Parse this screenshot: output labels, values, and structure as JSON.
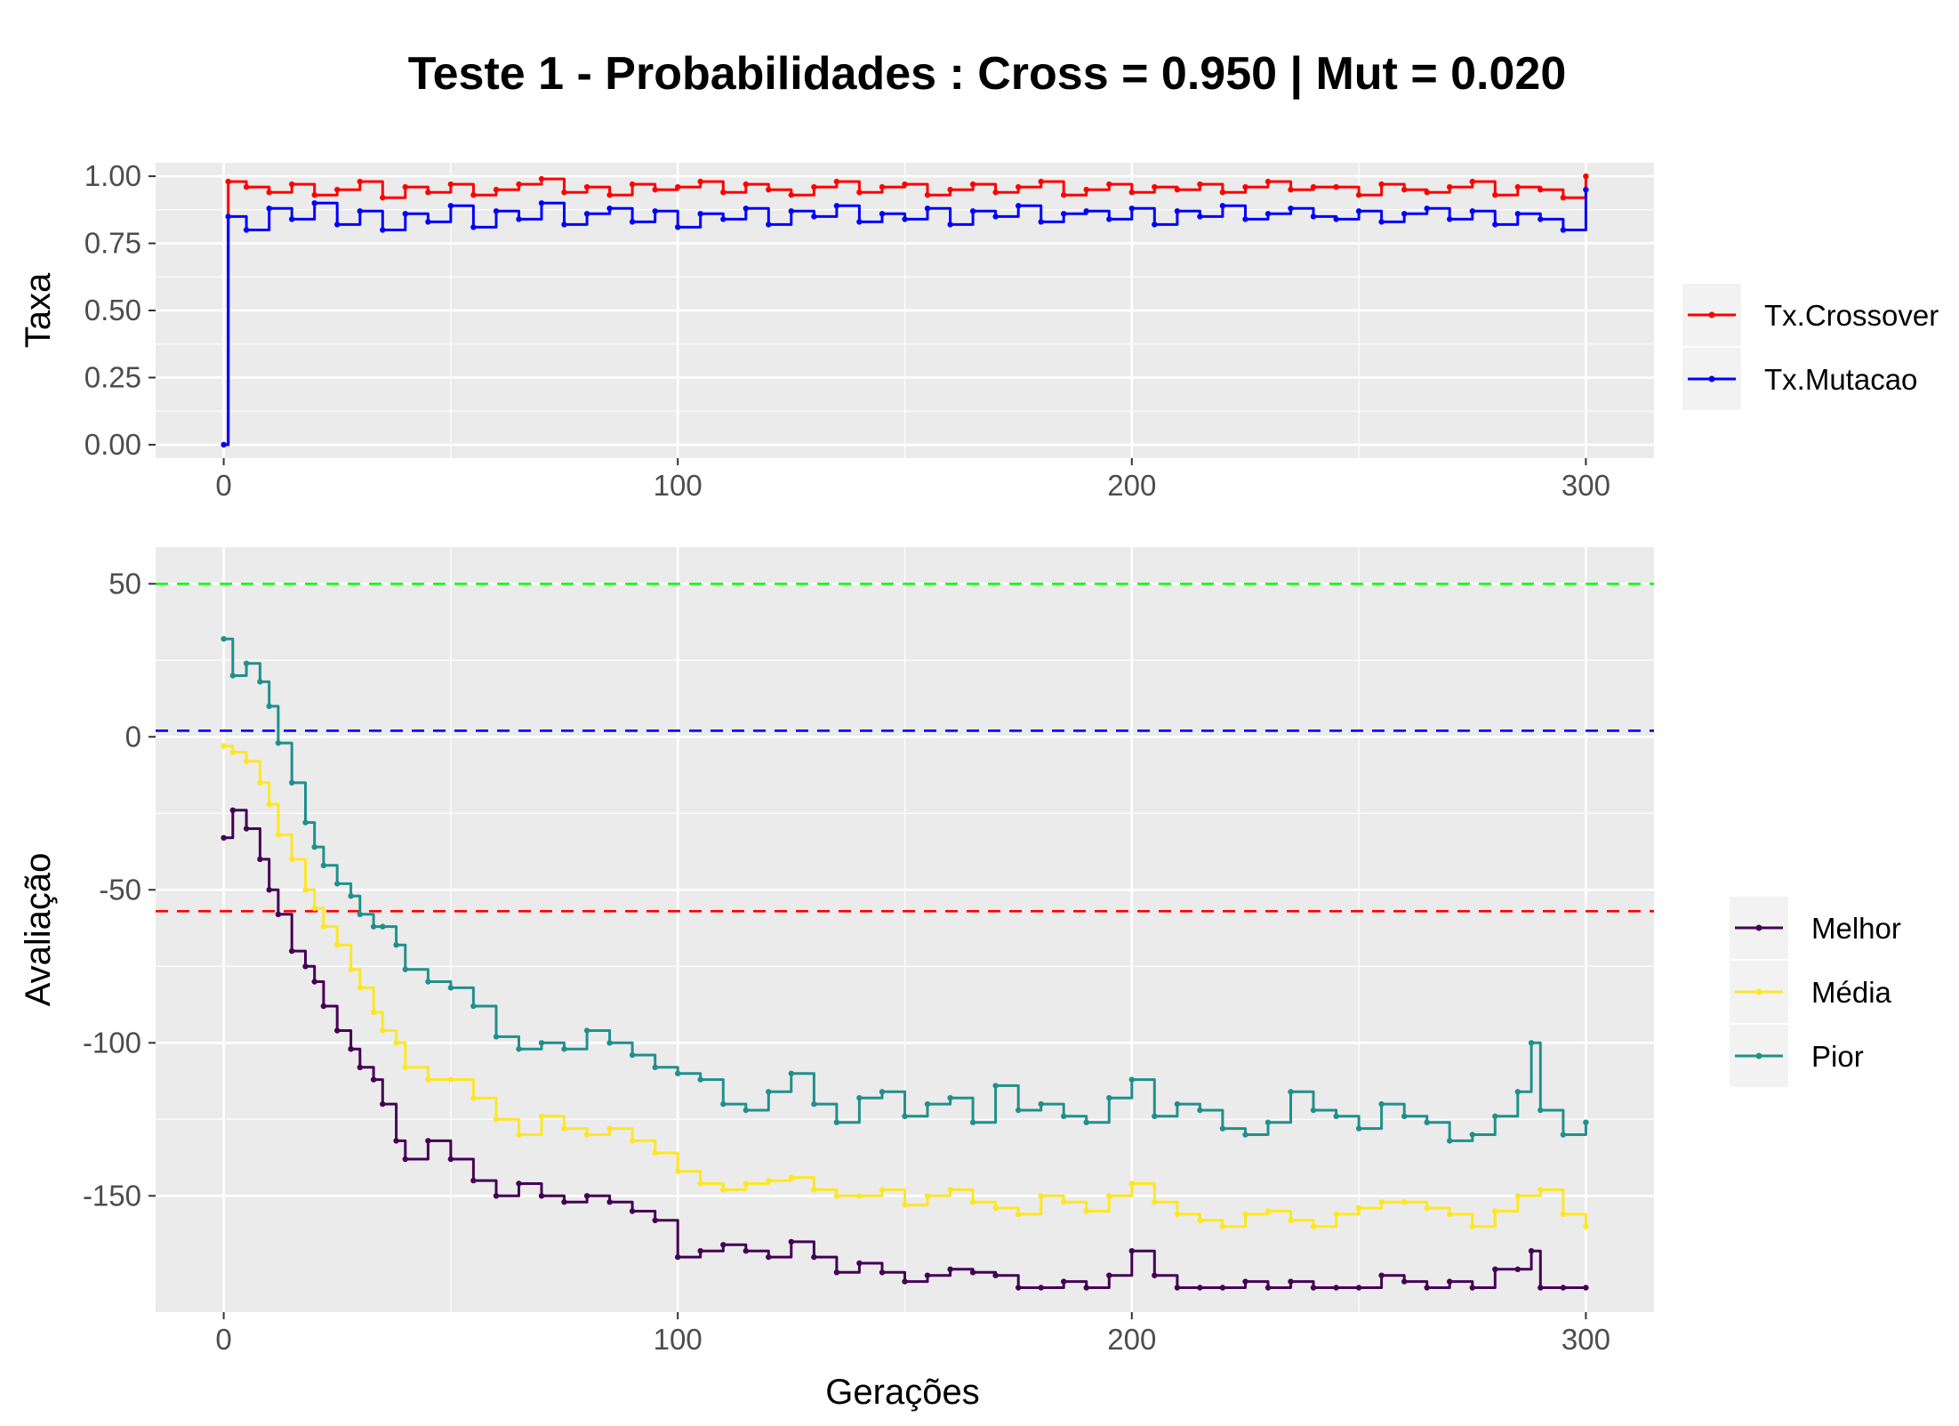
{
  "title": "Teste 1 - Probabilidades : Cross = 0.950 | Mut = 0.020",
  "colors": {
    "panel": "#ebebeb",
    "grid": "#ffffff",
    "crossover": "#ff0000",
    "mutacao": "#0000ff",
    "melhor": "#440154",
    "media": "#fde725",
    "pior": "#21908c",
    "ref_green": "#00ff00",
    "ref_blue": "#0000ff",
    "ref_red": "#ff0000"
  },
  "chart_data": [
    {
      "type": "line",
      "ylabel": "Taxa",
      "xlabel": "",
      "xlim": [
        -15,
        315
      ],
      "ylim": [
        -0.05,
        1.05
      ],
      "x_ticks": [
        0,
        100,
        200,
        300
      ],
      "x_tick_labels": [
        "0",
        "100",
        "200",
        "300"
      ],
      "y_ticks": [
        0,
        0.25,
        0.5,
        0.75,
        1.0
      ],
      "y_tick_labels": [
        "0.00",
        "0.25",
        "0.50",
        "0.75",
        "1.00"
      ],
      "grid": true,
      "legend_position": "right",
      "series": [
        {
          "name": "Tx.Crossover",
          "color": "#ff0000",
          "x": [
            0,
            1,
            5,
            10,
            15,
            20,
            25,
            30,
            35,
            40,
            45,
            50,
            55,
            60,
            65,
            70,
            75,
            80,
            85,
            90,
            95,
            100,
            105,
            110,
            115,
            120,
            125,
            130,
            135,
            140,
            145,
            150,
            155,
            160,
            165,
            170,
            175,
            180,
            185,
            190,
            195,
            200,
            205,
            210,
            215,
            220,
            225,
            230,
            235,
            240,
            245,
            250,
            255,
            260,
            265,
            270,
            275,
            280,
            285,
            290,
            295,
            300
          ],
          "values": [
            0.0,
            0.98,
            0.96,
            0.94,
            0.97,
            0.93,
            0.95,
            0.98,
            0.92,
            0.96,
            0.94,
            0.97,
            0.93,
            0.95,
            0.97,
            0.99,
            0.94,
            0.96,
            0.93,
            0.97,
            0.95,
            0.96,
            0.98,
            0.94,
            0.97,
            0.95,
            0.93,
            0.96,
            0.98,
            0.94,
            0.96,
            0.97,
            0.93,
            0.95,
            0.97,
            0.94,
            0.96,
            0.98,
            0.93,
            0.95,
            0.97,
            0.94,
            0.96,
            0.95,
            0.97,
            0.94,
            0.96,
            0.98,
            0.95,
            0.96,
            0.96,
            0.93,
            0.97,
            0.95,
            0.94,
            0.96,
            0.98,
            0.93,
            0.96,
            0.95,
            0.92,
            1.0
          ]
        },
        {
          "name": "Tx.Mutacao",
          "color": "#0000ff",
          "x": [
            0,
            1,
            5,
            10,
            15,
            20,
            25,
            30,
            35,
            40,
            45,
            50,
            55,
            60,
            65,
            70,
            75,
            80,
            85,
            90,
            95,
            100,
            105,
            110,
            115,
            120,
            125,
            130,
            135,
            140,
            145,
            150,
            155,
            160,
            165,
            170,
            175,
            180,
            185,
            190,
            195,
            200,
            205,
            210,
            215,
            220,
            225,
            230,
            235,
            240,
            245,
            250,
            255,
            260,
            265,
            270,
            275,
            280,
            285,
            290,
            295,
            300
          ],
          "values": [
            0.0,
            0.85,
            0.8,
            0.88,
            0.84,
            0.9,
            0.82,
            0.87,
            0.8,
            0.86,
            0.83,
            0.89,
            0.81,
            0.87,
            0.84,
            0.9,
            0.82,
            0.86,
            0.88,
            0.83,
            0.87,
            0.81,
            0.86,
            0.84,
            0.88,
            0.82,
            0.87,
            0.85,
            0.89,
            0.83,
            0.86,
            0.84,
            0.88,
            0.82,
            0.87,
            0.85,
            0.89,
            0.83,
            0.86,
            0.87,
            0.84,
            0.88,
            0.82,
            0.87,
            0.85,
            0.89,
            0.84,
            0.86,
            0.88,
            0.85,
            0.84,
            0.87,
            0.83,
            0.86,
            0.88,
            0.84,
            0.87,
            0.82,
            0.86,
            0.84,
            0.8,
            0.95
          ]
        }
      ]
    },
    {
      "type": "line",
      "ylabel": "Avaliação",
      "xlabel": "Gerações",
      "xlim": [
        -15,
        315
      ],
      "ylim": [
        -188,
        62
      ],
      "x_ticks": [
        0,
        100,
        200,
        300
      ],
      "x_tick_labels": [
        "0",
        "100",
        "200",
        "300"
      ],
      "y_ticks": [
        -150,
        -100,
        -50,
        0,
        50
      ],
      "y_tick_labels": [
        "-150",
        "-100",
        "-50",
        "0",
        "50"
      ],
      "grid": true,
      "legend_position": "right",
      "hlines": [
        {
          "y": 50,
          "color": "#00ff00",
          "style": "dashed"
        },
        {
          "y": 2,
          "color": "#0000ff",
          "style": "dashed"
        },
        {
          "y": -57,
          "color": "#ff0000",
          "style": "dashed"
        }
      ],
      "series": [
        {
          "name": "Melhor",
          "color": "#440154",
          "x": [
            0,
            2,
            5,
            8,
            10,
            12,
            15,
            18,
            20,
            22,
            25,
            28,
            30,
            33,
            35,
            38,
            40,
            45,
            50,
            55,
            60,
            65,
            70,
            75,
            80,
            85,
            90,
            95,
            100,
            105,
            110,
            115,
            120,
            125,
            130,
            135,
            140,
            145,
            150,
            155,
            160,
            165,
            170,
            175,
            180,
            185,
            190,
            195,
            200,
            205,
            210,
            215,
            220,
            225,
            230,
            235,
            240,
            245,
            250,
            255,
            260,
            265,
            270,
            275,
            280,
            285,
            288,
            290,
            295,
            300
          ],
          "values": [
            -33,
            -24,
            -30,
            -40,
            -50,
            -58,
            -70,
            -75,
            -80,
            -88,
            -96,
            -102,
            -108,
            -112,
            -120,
            -132,
            -138,
            -132,
            -138,
            -145,
            -150,
            -146,
            -150,
            -152,
            -150,
            -152,
            -155,
            -158,
            -170,
            -168,
            -166,
            -168,
            -170,
            -165,
            -170,
            -175,
            -172,
            -175,
            -178,
            -176,
            -174,
            -175,
            -176,
            -180,
            -180,
            -178,
            -180,
            -176,
            -168,
            -176,
            -180,
            -180,
            -180,
            -178,
            -180,
            -178,
            -180,
            -180,
            -180,
            -176,
            -178,
            -180,
            -178,
            -180,
            -174,
            -174,
            -168,
            -180,
            -180,
            -180
          ]
        },
        {
          "name": "Média",
          "color": "#fde725",
          "x": [
            0,
            2,
            5,
            8,
            10,
            12,
            15,
            18,
            20,
            22,
            25,
            28,
            30,
            33,
            35,
            38,
            40,
            45,
            50,
            55,
            60,
            65,
            70,
            75,
            80,
            85,
            90,
            95,
            100,
            105,
            110,
            115,
            120,
            125,
            130,
            135,
            140,
            145,
            150,
            155,
            160,
            165,
            170,
            175,
            180,
            185,
            190,
            195,
            200,
            205,
            210,
            215,
            220,
            225,
            230,
            235,
            240,
            245,
            250,
            255,
            260,
            265,
            270,
            275,
            280,
            285,
            290,
            295,
            300
          ],
          "values": [
            -3,
            -5,
            -8,
            -15,
            -22,
            -32,
            -40,
            -50,
            -56,
            -62,
            -68,
            -76,
            -82,
            -90,
            -96,
            -100,
            -108,
            -112,
            -112,
            -118,
            -125,
            -130,
            -124,
            -128,
            -130,
            -128,
            -132,
            -136,
            -142,
            -146,
            -148,
            -146,
            -145,
            -144,
            -148,
            -150,
            -150,
            -148,
            -153,
            -150,
            -148,
            -152,
            -154,
            -156,
            -150,
            -152,
            -155,
            -150,
            -146,
            -152,
            -156,
            -158,
            -160,
            -156,
            -155,
            -158,
            -160,
            -156,
            -154,
            -152,
            -152,
            -154,
            -156,
            -160,
            -155,
            -150,
            -148,
            -156,
            -160
          ]
        },
        {
          "name": "Pior",
          "color": "#21908c",
          "x": [
            0,
            2,
            5,
            8,
            10,
            12,
            15,
            18,
            20,
            22,
            25,
            28,
            30,
            33,
            35,
            38,
            40,
            45,
            50,
            55,
            60,
            65,
            70,
            75,
            80,
            85,
            90,
            95,
            100,
            105,
            110,
            115,
            120,
            125,
            130,
            135,
            140,
            145,
            150,
            155,
            160,
            165,
            170,
            175,
            180,
            185,
            190,
            195,
            200,
            205,
            210,
            215,
            220,
            225,
            230,
            235,
            240,
            245,
            250,
            255,
            260,
            265,
            270,
            275,
            280,
            285,
            288,
            290,
            295,
            300
          ],
          "values": [
            32,
            20,
            24,
            18,
            10,
            -2,
            -15,
            -28,
            -36,
            -42,
            -48,
            -52,
            -58,
            -62,
            -62,
            -68,
            -76,
            -80,
            -82,
            -88,
            -98,
            -102,
            -100,
            -102,
            -96,
            -100,
            -104,
            -108,
            -110,
            -112,
            -120,
            -122,
            -116,
            -110,
            -120,
            -126,
            -118,
            -116,
            -124,
            -120,
            -118,
            -126,
            -114,
            -122,
            -120,
            -124,
            -126,
            -118,
            -112,
            -124,
            -120,
            -122,
            -128,
            -130,
            -126,
            -116,
            -122,
            -124,
            -128,
            -120,
            -124,
            -126,
            -132,
            -130,
            -124,
            -116,
            -100,
            -122,
            -130,
            -126
          ]
        }
      ]
    }
  ],
  "legends": [
    {
      "items": [
        "Tx.Crossover",
        "Tx.Mutacao"
      ]
    },
    {
      "items": [
        "Melhor",
        "Média",
        "Pior"
      ]
    }
  ]
}
